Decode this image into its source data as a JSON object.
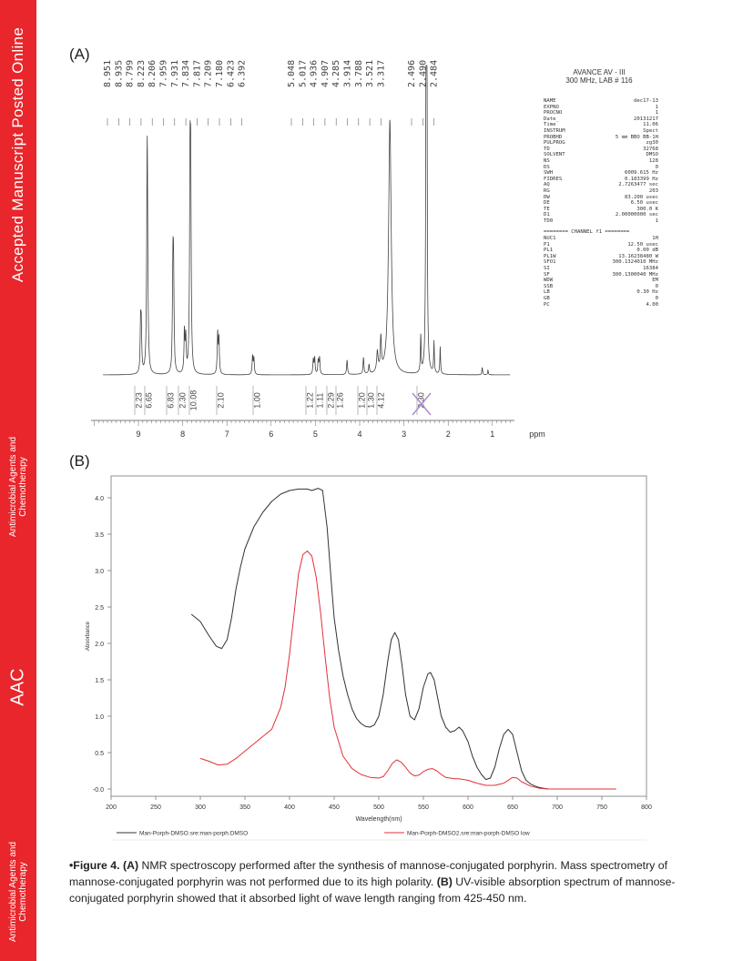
{
  "sidebar": {
    "main_text": "Accepted Manuscript Posted Online",
    "journal_upper": [
      "Antimicrobial Agents and",
      "Chemotherapy"
    ],
    "aac": "AAC",
    "journal_lower": [
      "Antimicrobial Agents and",
      "Chemotherapy"
    ]
  },
  "panel_a": {
    "label": "(A)",
    "instrument": [
      "AVANCE AV - III",
      "300 MHz, LAB # 116"
    ],
    "peak_labels": [
      "8.951",
      "8.935",
      "8.799",
      "8.223",
      "8.206",
      "7.959",
      "7.931",
      "7.834",
      "7.817",
      "7.209",
      "7.180",
      "6.423",
      "6.392",
      "5.048",
      "5.017",
      "4.936",
      "4.907",
      "4.285",
      "3.914",
      "3.788",
      "3.521",
      "3.317",
      "2.496",
      "2.490",
      "2.484"
    ],
    "integrals": [
      "2.23",
      "6.65",
      "6.83",
      "2.30",
      "10.08",
      "2.10",
      "1.00",
      "1.22",
      "1.11",
      "2.29",
      "1.26",
      "1.20",
      "1.30",
      "4.12",
      "2.30"
    ],
    "ppm_ticks": [
      "9",
      "8",
      "7",
      "6",
      "5",
      "4",
      "3",
      "2",
      "1"
    ],
    "ppm_unit": "ppm",
    "params_top": [
      [
        "NAME",
        "dec17-13"
      ],
      [
        "EXPNO",
        "1"
      ],
      [
        "PROCNO",
        "1"
      ],
      [
        "Date_",
        "20131217"
      ],
      [
        "Time",
        "11.06"
      ],
      [
        "INSTRUM",
        "Spect"
      ],
      [
        "PROBHD",
        "5 mm BBO BB-1H"
      ],
      [
        "PULPROG",
        "zg30"
      ],
      [
        "TD",
        "32768"
      ],
      [
        "SOLVENT",
        "DMSO"
      ],
      [
        "NS",
        "128"
      ],
      [
        "DS",
        "0"
      ],
      [
        "SWH",
        "6009.615 Hz"
      ],
      [
        "FIDRES",
        "0.183399 Hz"
      ],
      [
        "AQ",
        "2.7263477 sec"
      ],
      [
        "RG",
        "203"
      ],
      [
        "DW",
        "83.200 usec"
      ],
      [
        "DE",
        "6.50 usec"
      ],
      [
        "TE",
        "300.0 K"
      ],
      [
        "D1",
        "2.00000000 sec"
      ],
      [
        "TD0",
        "1"
      ]
    ],
    "channel_header": "======== CHANNEL f1 ========",
    "params_bottom": [
      [
        "NUC1",
        "1H"
      ],
      [
        "P1",
        "12.50 usec"
      ],
      [
        "PL1",
        "0.00 dB"
      ],
      [
        "PL1W",
        "13.16238480 W"
      ],
      [
        "SFO1",
        "300.1324010 MHz"
      ],
      [
        "SI",
        "16384"
      ],
      [
        "SF",
        "300.1300040 MHz"
      ],
      [
        "WDW",
        "EM"
      ],
      [
        "SSB",
        "0"
      ],
      [
        "LB",
        "0.30 Hz"
      ],
      [
        "GB",
        "0"
      ],
      [
        "PC",
        "4.00"
      ]
    ]
  },
  "panel_b": {
    "label": "(B)"
  },
  "chart_data": {
    "type": "line",
    "title": "",
    "xlabel": "Wavelength(nm)",
    "ylabel": "Absorbance",
    "xlim": [
      200,
      800
    ],
    "ylim": [
      -0.1,
      4.3
    ],
    "x_ticks": [
      200,
      250,
      300,
      350,
      400,
      450,
      500,
      550,
      600,
      650,
      700,
      750,
      800
    ],
    "y_ticks": [
      "-0.0",
      "0.5",
      "1.0",
      "1.5",
      "2.0",
      "2.5",
      "3.0",
      "3.5",
      "4.0"
    ],
    "y_tick_values": [
      0,
      0.5,
      1.0,
      1.5,
      2.0,
      2.5,
      3.0,
      3.5,
      4.0
    ],
    "legend_position": "bottom",
    "series": [
      {
        "name": "Man-Porph-DMSO.sre:man-porph.DMSO",
        "color": "#333333",
        "x": [
          290,
          300,
          310,
          318,
          324,
          330,
          335,
          340,
          345,
          350,
          360,
          370,
          380,
          390,
          400,
          410,
          420,
          425,
          432,
          437,
          442,
          447,
          450,
          455,
          460,
          465,
          470,
          475,
          480,
          485,
          490,
          495,
          500,
          505,
          510,
          514,
          518,
          522,
          526,
          530,
          535,
          540,
          545,
          550,
          555,
          558,
          562,
          566,
          570,
          575,
          580,
          585,
          590,
          594,
          600,
          605,
          610,
          615,
          620,
          625,
          630,
          635,
          640,
          645,
          650,
          655,
          660,
          665,
          670,
          675,
          680,
          685,
          690,
          695
        ],
        "y": [
          2.4,
          2.3,
          2.1,
          1.96,
          1.93,
          2.05,
          2.35,
          2.75,
          3.05,
          3.3,
          3.6,
          3.8,
          3.95,
          4.05,
          4.1,
          4.12,
          4.12,
          4.1,
          4.13,
          4.1,
          3.6,
          2.8,
          2.35,
          1.9,
          1.55,
          1.3,
          1.1,
          0.97,
          0.9,
          0.86,
          0.85,
          0.88,
          1.0,
          1.3,
          1.75,
          2.05,
          2.15,
          2.05,
          1.7,
          1.3,
          1.0,
          0.95,
          1.1,
          1.4,
          1.58,
          1.6,
          1.5,
          1.25,
          1.0,
          0.85,
          0.78,
          0.8,
          0.85,
          0.8,
          0.65,
          0.45,
          0.3,
          0.2,
          0.13,
          0.15,
          0.3,
          0.55,
          0.75,
          0.82,
          0.75,
          0.5,
          0.25,
          0.12,
          0.07,
          0.04,
          0.02,
          0.01,
          0.0,
          0.0
        ]
      },
      {
        "name": "Man-Porph-DMSO2.sre:man-porph-DMSO low",
        "color": "#e3303a",
        "x": [
          300,
          310,
          320,
          330,
          340,
          350,
          360,
          370,
          380,
          390,
          395,
          400,
          405,
          410,
          415,
          420,
          425,
          430,
          435,
          440,
          445,
          450,
          460,
          470,
          480,
          490,
          500,
          505,
          510,
          515,
          520,
          525,
          530,
          535,
          540,
          545,
          550,
          555,
          560,
          565,
          570,
          575,
          580,
          585,
          590,
          595,
          600,
          610,
          620,
          630,
          640,
          645,
          650,
          655,
          660,
          670,
          680,
          690,
          700,
          720,
          740,
          766
        ],
        "y": [
          0.42,
          0.38,
          0.33,
          0.34,
          0.42,
          0.52,
          0.62,
          0.72,
          0.82,
          1.12,
          1.4,
          1.85,
          2.4,
          2.95,
          3.22,
          3.27,
          3.2,
          2.9,
          2.4,
          1.8,
          1.25,
          0.85,
          0.45,
          0.28,
          0.2,
          0.16,
          0.15,
          0.17,
          0.25,
          0.35,
          0.4,
          0.37,
          0.3,
          0.22,
          0.18,
          0.19,
          0.24,
          0.27,
          0.28,
          0.25,
          0.2,
          0.16,
          0.15,
          0.14,
          0.14,
          0.13,
          0.12,
          0.08,
          0.05,
          0.05,
          0.08,
          0.12,
          0.16,
          0.15,
          0.1,
          0.04,
          0.01,
          0.0,
          0.0,
          0.0,
          0.0,
          0.0
        ]
      }
    ]
  },
  "caption": {
    "lead": "•Figure 4. ",
    "a_label": "(A)",
    "a_text": " NMR spectroscopy performed  after the synthesis of mannose-conjugated porphyrin.  Mass spectrometry of mannose-conjugated porphyrin  was not performed  due to its high polarity. ",
    "b_label": "(B)",
    "b_text": " UV-visible absorption spectrum of mannose-conjugated porphyrin  showed that it absorbed light of wave length ranging from 425-450 nm."
  }
}
